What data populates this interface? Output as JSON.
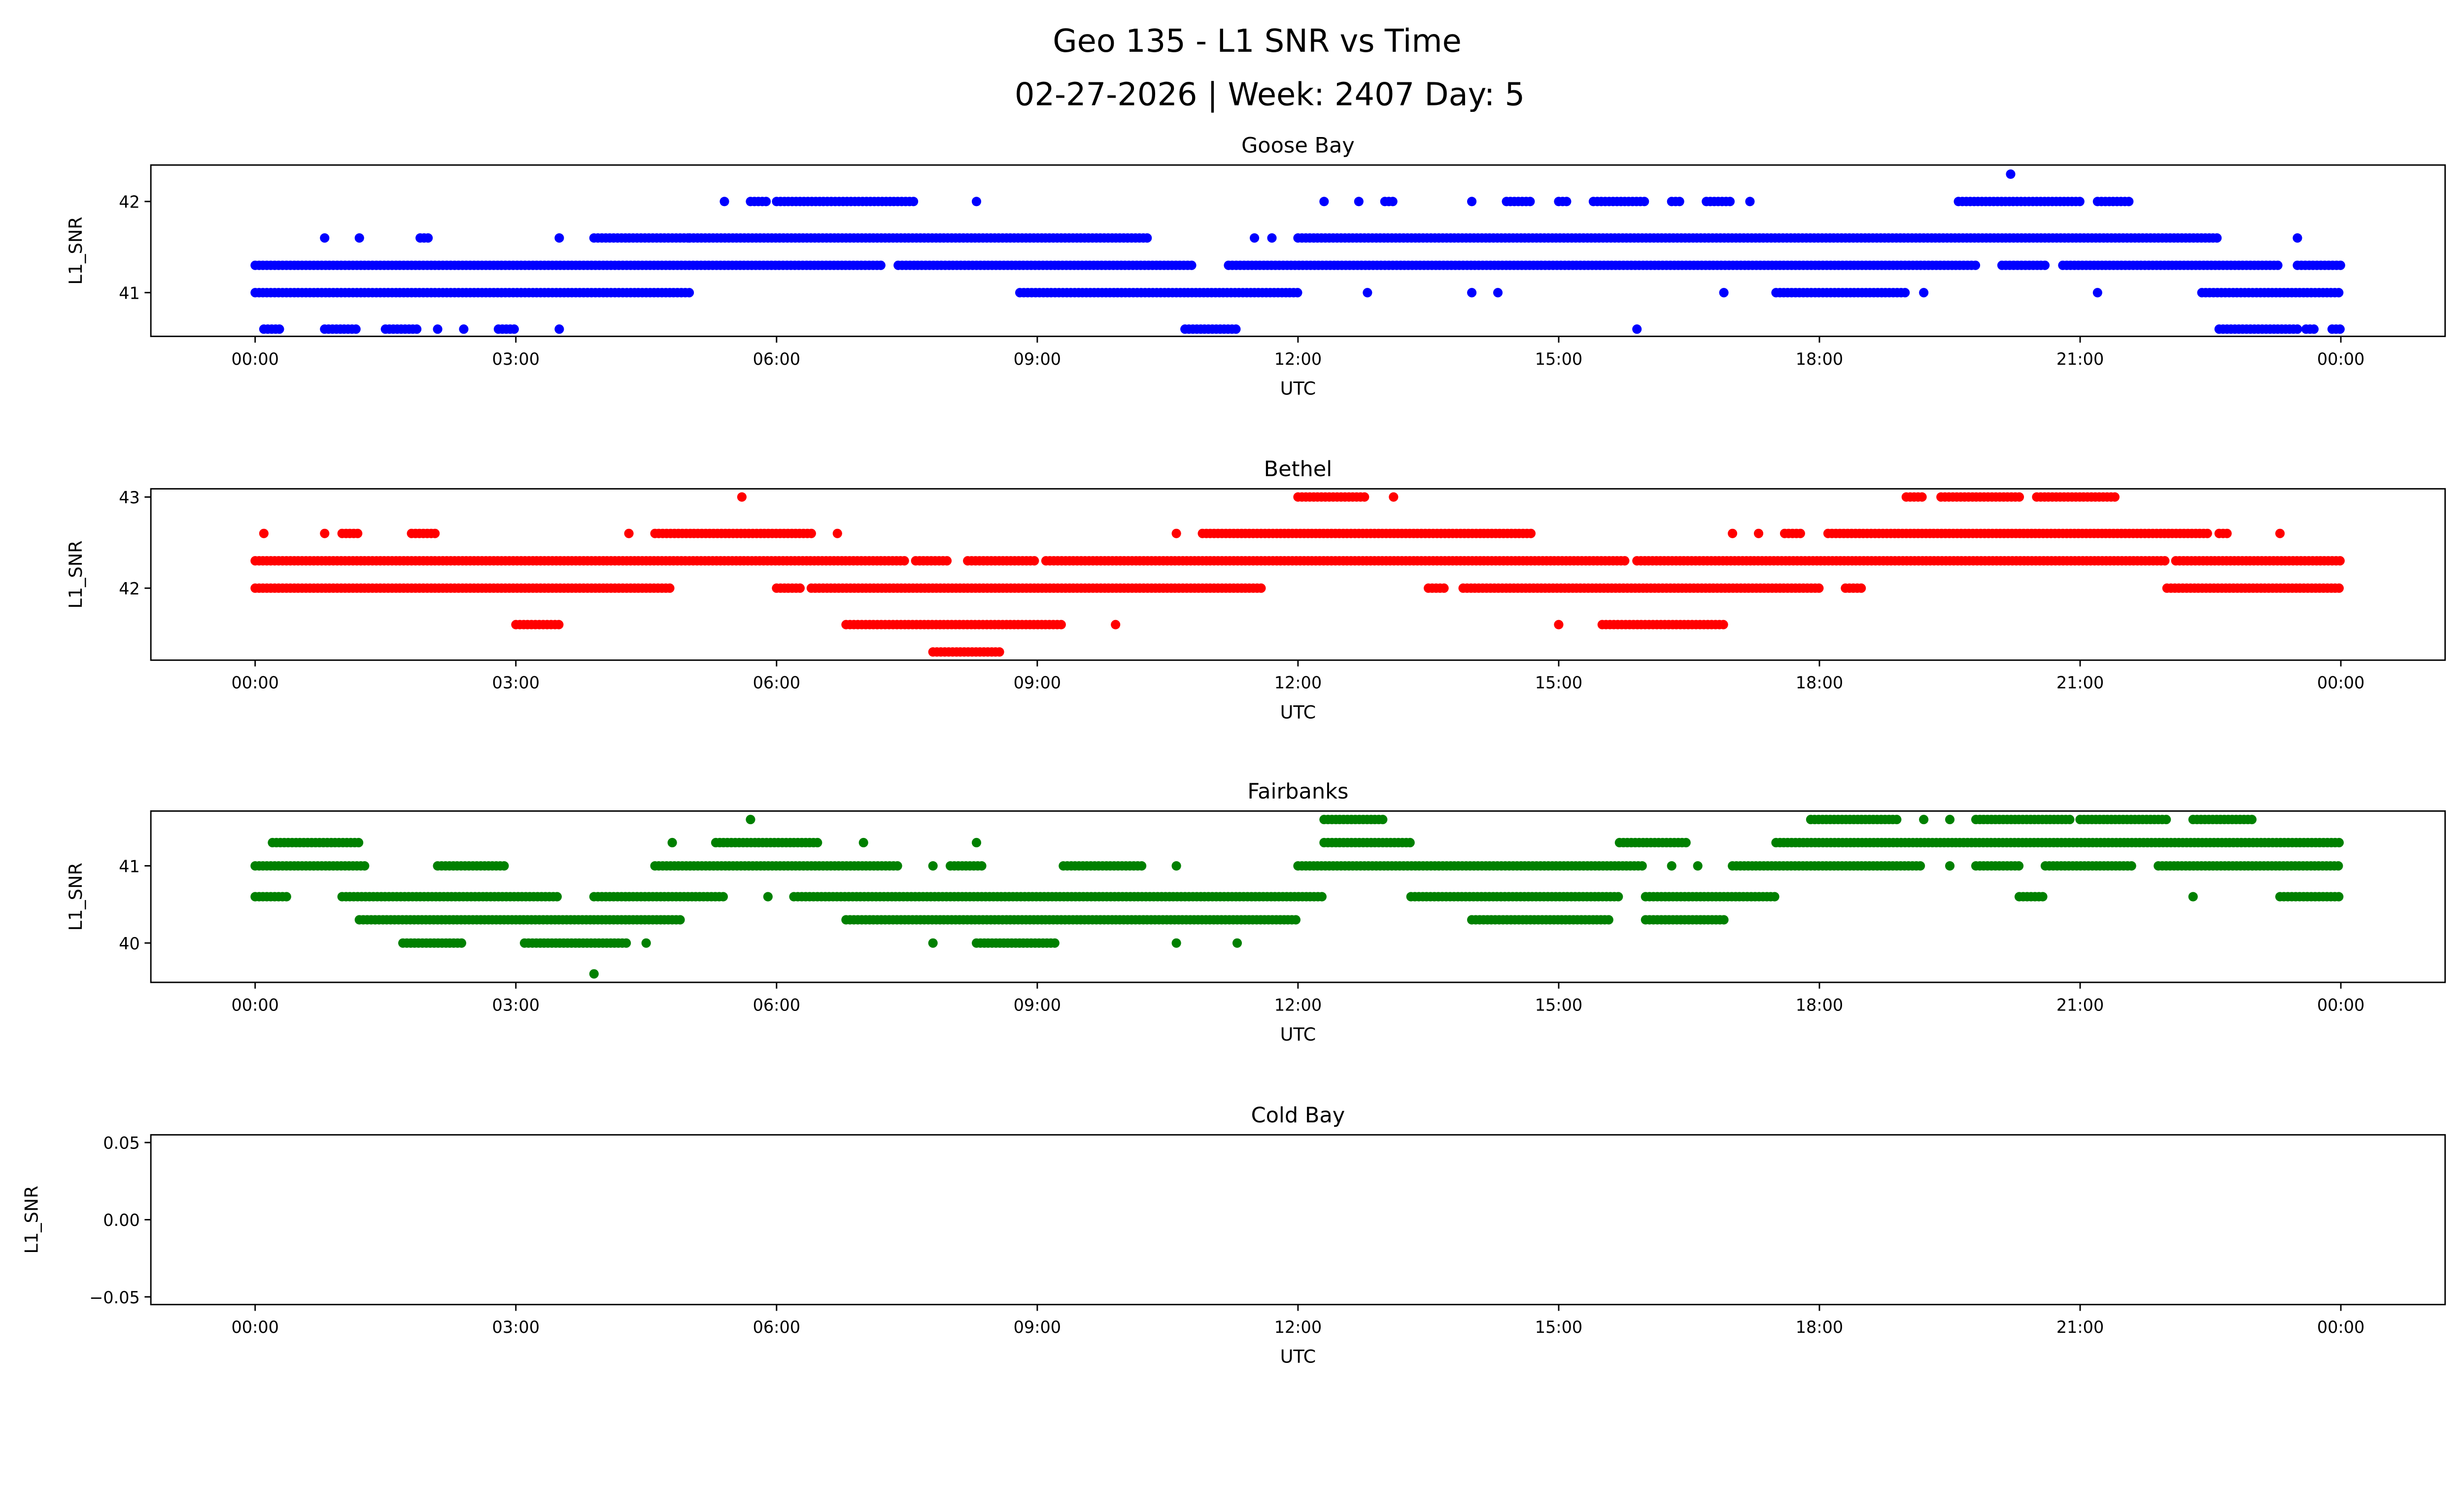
{
  "title_line1": "Geo 135 - L1 SNR vs Time",
  "title_line2": "02-27-2026 | Week: 2407 Day: 5",
  "chart_data": [
    {
      "type": "scatter",
      "title": "Goose Bay",
      "xlabel": "UTC",
      "ylabel": "L1_SNR",
      "color": "#0000ff",
      "xlim": [
        -1.2,
        25.2
      ],
      "ylim": [
        40.52,
        42.4
      ],
      "yticks": [
        41,
        42
      ],
      "ytick_labels": [
        "41",
        "42"
      ],
      "runs": [
        [
          41.3,
          [
            [
              0,
              7.2
            ],
            [
              7.4,
              10.8
            ],
            [
              11.2,
              19.8
            ],
            [
              20.1,
              20.6
            ],
            [
              20.8,
              23.3
            ],
            [
              23.5,
              24
            ]
          ]
        ],
        [
          41.0,
          [
            [
              0,
              5.0
            ],
            [
              8.8,
              12.0
            ],
            [
              12.8,
              12.8
            ],
            [
              14.0,
              14.0
            ],
            [
              14.3,
              14.3
            ],
            [
              16.9,
              16.9
            ],
            [
              17.5,
              19.0
            ],
            [
              19.2,
              19.2
            ],
            [
              21.2,
              21.2
            ],
            [
              22.4,
              24
            ]
          ]
        ],
        [
          41.6,
          [
            [
              0.8,
              0.8
            ],
            [
              1.2,
              1.2
            ],
            [
              1.9,
              2.0
            ],
            [
              3.5,
              3.5
            ],
            [
              3.9,
              5.0
            ],
            [
              5.0,
              10.3
            ],
            [
              11.5,
              11.5
            ],
            [
              11.7,
              11.7
            ],
            [
              12.0,
              22.6
            ],
            [
              23.5,
              23.5
            ]
          ]
        ],
        [
          42.0,
          [
            [
              5.4,
              5.4
            ],
            [
              5.7,
              5.9
            ],
            [
              6.0,
              7.6
            ],
            [
              8.3,
              8.3
            ],
            [
              12.3,
              12.3
            ],
            [
              12.7,
              12.7
            ],
            [
              13.0,
              13.1
            ],
            [
              14.0,
              14.0
            ],
            [
              14.4,
              14.7
            ],
            [
              15.0,
              15.1
            ],
            [
              15.4,
              16.0
            ],
            [
              16.3,
              16.4
            ],
            [
              16.7,
              17.0
            ],
            [
              17.2,
              17.2
            ],
            [
              19.6,
              21.0
            ],
            [
              21.2,
              21.6
            ]
          ]
        ],
        [
          40.6,
          [
            [
              0.1,
              0.3
            ],
            [
              0.8,
              1.2
            ],
            [
              1.5,
              1.9
            ],
            [
              2.1,
              2.1
            ],
            [
              2.4,
              2.4
            ],
            [
              2.8,
              3.0
            ],
            [
              3.5,
              3.5
            ],
            [
              10.7,
              11.3
            ],
            [
              15.9,
              15.9
            ],
            [
              22.6,
              23.5
            ],
            [
              23.6,
              23.7
            ],
            [
              23.9,
              24
            ]
          ]
        ],
        [
          42.3,
          [
            [
              20.2,
              20.2
            ]
          ]
        ]
      ]
    },
    {
      "type": "scatter",
      "title": "Bethel",
      "xlabel": "UTC",
      "ylabel": "L1_SNR",
      "color": "#ff0000",
      "xlim": [
        -1.2,
        25.2
      ],
      "ylim": [
        41.21,
        43.09
      ],
      "yticks": [
        42,
        43
      ],
      "ytick_labels": [
        "42",
        "43"
      ],
      "runs": [
        [
          42.3,
          [
            [
              0,
              7.5
            ],
            [
              7.6,
              8.0
            ],
            [
              8.2,
              9.0
            ],
            [
              9.1,
              15.8
            ],
            [
              15.9,
              22.0
            ],
            [
              22.1,
              24
            ]
          ]
        ],
        [
          42.0,
          [
            [
              0,
              4.8
            ],
            [
              6.0,
              6.3
            ],
            [
              6.4,
              11.6
            ],
            [
              13.5,
              13.7
            ],
            [
              13.9,
              18.0
            ],
            [
              18.3,
              18.5
            ],
            [
              22.0,
              24
            ]
          ]
        ],
        [
          42.6,
          [
            [
              0.1,
              0.1
            ],
            [
              0.8,
              0.8
            ],
            [
              1.0,
              1.2
            ],
            [
              1.8,
              2.1
            ],
            [
              4.3,
              4.3
            ],
            [
              4.6,
              6.4
            ],
            [
              6.7,
              6.7
            ],
            [
              10.6,
              10.6
            ],
            [
              10.9,
              14.7
            ],
            [
              17.0,
              17.0
            ],
            [
              17.3,
              17.3
            ],
            [
              17.6,
              17.8
            ],
            [
              18.1,
              22.5
            ],
            [
              22.6,
              22.7
            ],
            [
              23.3,
              23.3
            ]
          ]
        ],
        [
          43.0,
          [
            [
              5.6,
              5.6
            ],
            [
              12.0,
              12.8
            ],
            [
              13.1,
              13.1
            ],
            [
              19.0,
              19.2
            ],
            [
              19.4,
              20.3
            ],
            [
              20.5,
              21.4
            ]
          ]
        ],
        [
          41.6,
          [
            [
              3.0,
              3.5
            ],
            [
              6.8,
              9.3
            ],
            [
              9.9,
              9.9
            ],
            [
              15.0,
              15.0
            ],
            [
              15.5,
              16.9
            ]
          ]
        ],
        [
          41.3,
          [
            [
              7.8,
              8.6
            ]
          ]
        ]
      ]
    },
    {
      "type": "scatter",
      "title": "Fairbanks",
      "xlabel": "UTC",
      "ylabel": "L1_SNR",
      "color": "#008000",
      "xlim": [
        -1.2,
        25.2
      ],
      "ylim": [
        39.49,
        41.71
      ],
      "yticks": [
        40,
        41
      ],
      "ytick_labels": [
        "40",
        "41"
      ],
      "runs": [
        [
          41.0,
          [
            [
              0,
              1.3
            ],
            [
              2.1,
              2.9
            ],
            [
              4.6,
              7.4
            ],
            [
              7.8,
              7.8
            ],
            [
              8.0,
              8.4
            ],
            [
              9.3,
              10.2
            ],
            [
              10.6,
              10.6
            ],
            [
              12.0,
              16.0
            ],
            [
              16.3,
              16.3
            ],
            [
              16.6,
              16.6
            ],
            [
              17.0,
              19.2
            ],
            [
              19.5,
              19.5
            ],
            [
              19.8,
              20.3
            ],
            [
              20.6,
              21.6
            ],
            [
              21.9,
              24
            ]
          ]
        ],
        [
          41.3,
          [
            [
              0.2,
              1.2
            ],
            [
              4.8,
              4.8
            ],
            [
              5.3,
              6.5
            ],
            [
              7.0,
              7.0
            ],
            [
              8.3,
              8.3
            ],
            [
              12.3,
              13.3
            ],
            [
              15.7,
              16.5
            ],
            [
              17.5,
              24
            ]
          ]
        ],
        [
          40.6,
          [
            [
              0,
              0.4
            ],
            [
              1.0,
              3.5
            ],
            [
              3.9,
              5.4
            ],
            [
              5.9,
              5.9
            ],
            [
              6.2,
              12.3
            ],
            [
              13.3,
              15.7
            ],
            [
              16.0,
              17.5
            ],
            [
              20.3,
              20.6
            ],
            [
              22.3,
              22.3
            ],
            [
              23.3,
              24
            ]
          ]
        ],
        [
          40.3,
          [
            [
              1.2,
              4.9
            ],
            [
              6.8,
              12.0
            ],
            [
              14.0,
              15.6
            ],
            [
              16.0,
              16.9
            ]
          ]
        ],
        [
          40.0,
          [
            [
              1.7,
              2.4
            ],
            [
              3.1,
              4.3
            ],
            [
              4.5,
              4.5
            ],
            [
              7.8,
              7.8
            ],
            [
              8.3,
              9.2
            ],
            [
              10.6,
              10.6
            ],
            [
              11.3,
              11.3
            ]
          ]
        ],
        [
          41.6,
          [
            [
              5.7,
              5.7
            ],
            [
              12.3,
              13.0
            ],
            [
              17.9,
              18.9
            ],
            [
              19.2,
              19.2
            ],
            [
              19.5,
              19.5
            ],
            [
              19.8,
              20.9
            ],
            [
              21.0,
              22.0
            ],
            [
              22.3,
              23.0
            ]
          ]
        ],
        [
          39.6,
          [
            [
              3.9,
              3.9
            ]
          ]
        ]
      ]
    },
    {
      "type": "scatter",
      "title": "Cold Bay",
      "xlabel": "UTC",
      "ylabel": "L1_SNR",
      "color": "#000000",
      "xlim": [
        -1.2,
        25.2
      ],
      "ylim": [
        -0.055,
        0.055
      ],
      "yticks": [
        -0.05,
        0.0,
        0.05
      ],
      "ytick_labels": [
        "−0.05",
        "0.00",
        "0.05"
      ],
      "runs": []
    }
  ],
  "xticks": [
    0,
    3,
    6,
    9,
    12,
    15,
    18,
    21,
    24
  ],
  "xtick_labels": [
    "00:00",
    "03:00",
    "06:00",
    "09:00",
    "12:00",
    "15:00",
    "18:00",
    "21:00",
    "00:00"
  ]
}
